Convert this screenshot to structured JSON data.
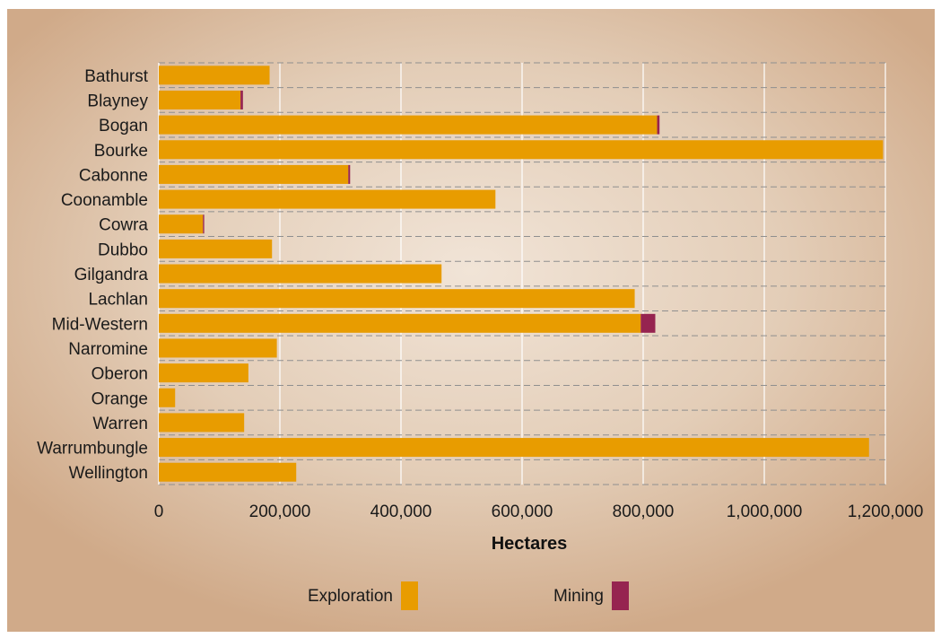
{
  "chart_data": {
    "type": "bar",
    "orientation": "horizontal",
    "stacked": true,
    "categories": [
      "Bathurst",
      "Blayney",
      "Bogan",
      "Bourke",
      "Cabonne",
      "Coonamble",
      "Cowra",
      "Dubbo",
      "Gilgandra",
      "Lachlan",
      "Mid-Western",
      "Narromine",
      "Oberon",
      "Orange",
      "Warren",
      "Warrumbungle",
      "Wellington"
    ],
    "series": [
      {
        "name": "Exploration",
        "color": "#e89c00",
        "values": [
          183000,
          135000,
          823000,
          1196000,
          313000,
          556000,
          73000,
          187000,
          467000,
          786000,
          796000,
          195000,
          148000,
          27000,
          141000,
          1173000,
          227000
        ]
      },
      {
        "name": "Mining",
        "color": "#962450",
        "values": [
          0,
          4000,
          4000,
          0,
          3000,
          0,
          2000,
          0,
          0,
          0,
          24000,
          0,
          0,
          0,
          0,
          0,
          0
        ]
      }
    ],
    "xlabel": "Hectares",
    "ylabel": "",
    "xlim": [
      0,
      1200000
    ],
    "xticks": [
      "0",
      "200,000",
      "400,000",
      "600,000",
      "800,000",
      "1,000,000",
      "1,200,000"
    ],
    "grid": true,
    "legend": "bottom"
  }
}
